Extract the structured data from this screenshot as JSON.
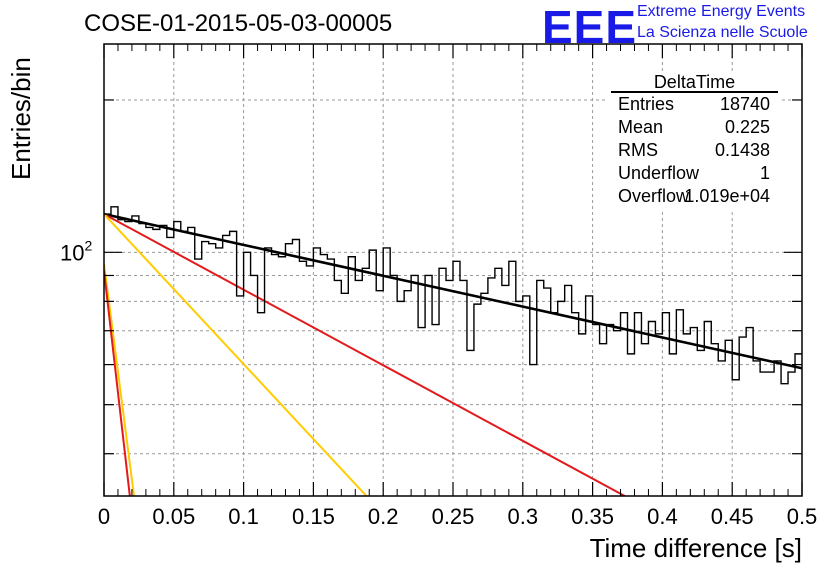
{
  "title": "COSE-01-2015-05-03-00005",
  "logo": {
    "text": "EEE",
    "line1": "Extreme Energy Events",
    "line2": "La Scienza nelle Scuole",
    "color": "#1a1ae6"
  },
  "stats": {
    "name": "DeltaTime",
    "rows": [
      {
        "label": "Entries",
        "value": "18740"
      },
      {
        "label": "Mean",
        "value": "0.225"
      },
      {
        "label": "RMS",
        "value": "0.1438"
      },
      {
        "label": "Underflow",
        "value": "1"
      },
      {
        "label": "Overflow",
        "value": "1.019e+04"
      }
    ]
  },
  "chart_data": {
    "type": "histogram",
    "title": "COSE-01-2015-05-03-00005",
    "xlabel": "Time difference [s]",
    "ylabel": "Entries/bin",
    "xlim": [
      0,
      0.5
    ],
    "ylim": [
      33,
      258
    ],
    "yscale": "log",
    "grid": true,
    "xticks": [
      "0",
      "0.05",
      "0.1",
      "0.15",
      "0.2",
      "0.25",
      "0.3",
      "0.35",
      "0.4",
      "0.45",
      "0.5"
    ],
    "ytick_label": "10^2",
    "bin_width": 0.005,
    "histogram": [
      119,
      123,
      116,
      115,
      118,
      114,
      112,
      111,
      113,
      107,
      115,
      110,
      112,
      97,
      105,
      104,
      102,
      108,
      110,
      82,
      100,
      90,
      76,
      102,
      99,
      98,
      104,
      106,
      96,
      94,
      102,
      99,
      97,
      88,
      83,
      98,
      88,
      93,
      101,
      84,
      102,
      90,
      80,
      84,
      90,
      71,
      90,
      72,
      93,
      88,
      96,
      88,
      64,
      79,
      83,
      89,
      93,
      86,
      96,
      80,
      82,
      60,
      88,
      85,
      76,
      80,
      86,
      76,
      69,
      82,
      72,
      66,
      72,
      70,
      76,
      63,
      76,
      66,
      73,
      69,
      76,
      63,
      77,
      69,
      71,
      64,
      73,
      66,
      61,
      67,
      56,
      68,
      71,
      61,
      58,
      58,
      61,
      55,
      58,
      63
    ],
    "fit_curves": [
      {
        "name": "total",
        "color": "#000000",
        "points": [
          [
            0.0,
            119
          ],
          [
            0.5,
            59
          ]
        ]
      },
      {
        "name": "red_slow",
        "color": "#e31a1c",
        "points": [
          [
            0.0,
            119
          ],
          [
            0.373,
            33
          ]
        ]
      },
      {
        "name": "yellow_mid",
        "color": "#ffcc00",
        "points": [
          [
            0.0,
            119
          ],
          [
            0.188,
            33
          ]
        ]
      },
      {
        "name": "yellow_fast",
        "color": "#ffcc00",
        "points": [
          [
            0.0,
            95
          ],
          [
            0.0215,
            33
          ]
        ]
      },
      {
        "name": "red_fast",
        "color": "#e31a1c",
        "points": [
          [
            0.0,
            92
          ],
          [
            0.0185,
            33
          ]
        ]
      }
    ]
  }
}
